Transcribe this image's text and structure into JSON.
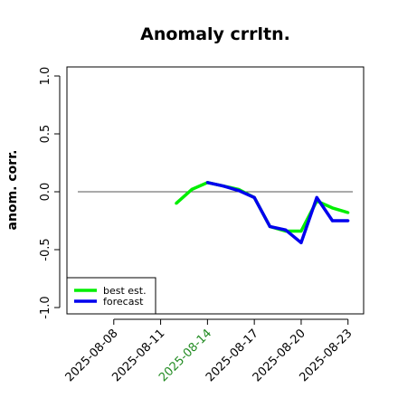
{
  "chart_data": {
    "type": "line",
    "title": "Anomaly crrltn.",
    "xlabel": "",
    "ylabel": "anom. corr.",
    "x_ticks": [
      "2025-08-08",
      "2025-08-11",
      "2025-08-14",
      "2025-08-17",
      "2025-08-20",
      "2025-08-23"
    ],
    "x_tick_colors": [
      "#000000",
      "#000000",
      "#228b22",
      "#000000",
      "#000000",
      "#000000"
    ],
    "xlim": [
      "2025-08-05",
      "2025-08-24"
    ],
    "ylim": [
      -1.0,
      1.0
    ],
    "y_ticks": [
      "-1.0",
      "-0.5",
      "0.0",
      "0.5",
      "1.0"
    ],
    "grid": false,
    "reference_line": 0.0,
    "legend": {
      "position": "bottom-left"
    },
    "series": [
      {
        "name": "best est.",
        "color": "#00ee00",
        "x": [
          "2025-08-12",
          "2025-08-13",
          "2025-08-14",
          "2025-08-15",
          "2025-08-16",
          "2025-08-17",
          "2025-08-18",
          "2025-08-19",
          "2025-08-20",
          "2025-08-21",
          "2025-08-22",
          "2025-08-23"
        ],
        "values": [
          -0.1,
          0.02,
          0.08,
          0.05,
          0.02,
          -0.05,
          -0.3,
          -0.34,
          -0.34,
          -0.08,
          -0.14,
          -0.18
        ]
      },
      {
        "name": "forecast",
        "color": "#0000ee",
        "x": [
          "2025-08-14",
          "2025-08-15",
          "2025-08-16",
          "2025-08-17",
          "2025-08-18",
          "2025-08-19",
          "2025-08-20",
          "2025-08-21",
          "2025-08-22",
          "2025-08-23"
        ],
        "values": [
          0.08,
          0.05,
          0.01,
          -0.05,
          -0.3,
          -0.33,
          -0.44,
          -0.05,
          -0.25,
          -0.25
        ]
      }
    ]
  }
}
